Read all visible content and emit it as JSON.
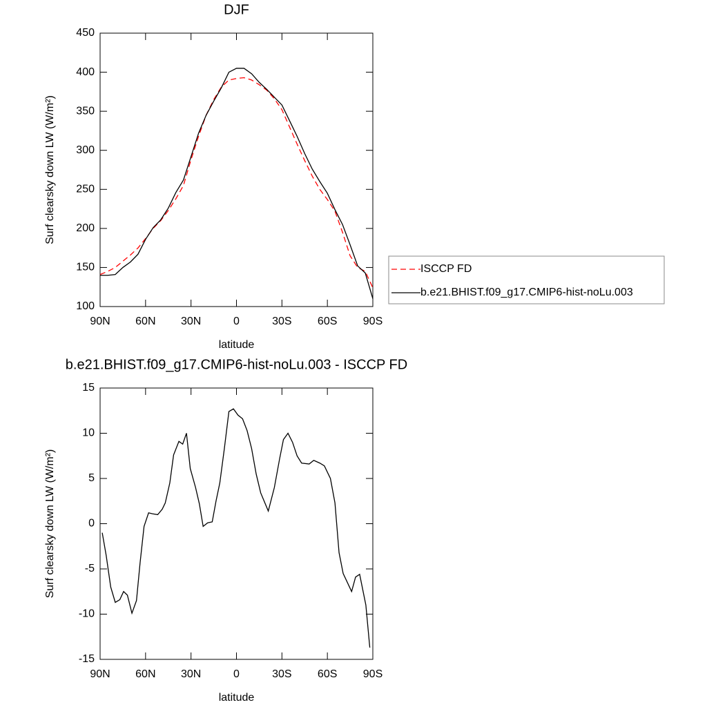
{
  "chart_data": [
    {
      "type": "line",
      "title": "DJF",
      "xlabel": "latitude",
      "ylabel": "Surf clearsky down LW (W/m²)",
      "xlim": [
        90,
        -90
      ],
      "xticks": [
        {
          "value": 90,
          "label": "90N"
        },
        {
          "value": 60,
          "label": "60N"
        },
        {
          "value": 30,
          "label": "30N"
        },
        0,
        {
          "value": -30,
          "label": "30S"
        },
        {
          "value": -60,
          "label": "60S"
        },
        {
          "value": -90,
          "label": "90S"
        }
      ],
      "ylim": [
        100,
        450
      ],
      "yticks": [
        100,
        150,
        200,
        250,
        300,
        350,
        400,
        450
      ],
      "legend": "right",
      "x": [
        90,
        85,
        80,
        75,
        70,
        65,
        60,
        55,
        50,
        45,
        40,
        35,
        30,
        25,
        20,
        15,
        10,
        5,
        0,
        -5,
        -10,
        -15,
        -20,
        -25,
        -30,
        -35,
        -40,
        -45,
        -50,
        -55,
        -60,
        -65,
        -70,
        -75,
        -80,
        -85,
        -90
      ],
      "series": [
        {
          "name": "ISCCP FD",
          "color": "#ff0000",
          "dashed": true,
          "values": [
            141,
            145,
            150,
            158,
            166,
            175,
            187,
            200,
            210,
            223,
            238,
            255,
            288,
            318,
            345,
            365,
            381,
            390,
            392,
            393,
            390,
            384,
            377,
            366,
            352,
            330,
            308,
            287,
            267,
            250,
            237,
            222,
            195,
            165,
            150,
            145,
            124
          ]
        },
        {
          "name": "b.e21.BHIST.f09_g17.CMIP6-hist-noLu.003",
          "color": "#000000",
          "dashed": false,
          "values": [
            140,
            140,
            141,
            150,
            157,
            167,
            186,
            201,
            211,
            226,
            246,
            262,
            292,
            322,
            345,
            363,
            380,
            400,
            405,
            405,
            398,
            387,
            378,
            368,
            358,
            338,
            318,
            296,
            276,
            260,
            245,
            224,
            205,
            179,
            152,
            143,
            110
          ]
        }
      ]
    },
    {
      "type": "line",
      "title": "b.e21.BHIST.f09_g17.CMIP6-hist-noLu.003 - ISCCP FD",
      "xlabel": "latitude",
      "ylabel": "Surf clearsky down LW (W/m²)",
      "xlim": [
        90,
        -90
      ],
      "xticks": [
        {
          "value": 90,
          "label": "90N"
        },
        {
          "value": 60,
          "label": "60N"
        },
        {
          "value": 30,
          "label": "30N"
        },
        0,
        {
          "value": -30,
          "label": "30S"
        },
        {
          "value": -60,
          "label": "60S"
        },
        {
          "value": -90,
          "label": "90S"
        }
      ],
      "ylim": [
        -15,
        15
      ],
      "yticks": [
        -15,
        -10,
        -5,
        0,
        5,
        10,
        15
      ],
      "color": "#000000",
      "x": [
        88.6,
        86,
        83,
        80,
        77,
        74.5,
        72,
        69,
        66,
        63.6,
        61,
        58,
        55.5,
        52,
        49,
        47,
        44,
        41.5,
        38,
        35.5,
        33,
        30.5,
        27,
        24.5,
        22,
        19,
        16,
        13.5,
        11,
        8,
        5,
        2,
        -1,
        -4,
        -7,
        -10,
        -13,
        -16,
        -21,
        -25,
        -28.5,
        -31,
        -34,
        -37,
        -40,
        -43,
        -48,
        -51,
        -55,
        -58,
        -62,
        -65,
        -67.7,
        -70.4,
        -76,
        -78.6,
        -81.3,
        -85.4,
        -88
      ],
      "values": [
        -1,
        -3.5,
        -7,
        -8.7,
        -8.4,
        -7.5,
        -7.9,
        -9.9,
        -8.5,
        -4.3,
        -0.3,
        1.2,
        1.1,
        1,
        1.6,
        2.3,
        4.5,
        7.6,
        9.1,
        8.8,
        10,
        6.1,
        4,
        2.2,
        -0.3,
        0.1,
        0.2,
        2.5,
        4.5,
        8.3,
        12.4,
        12.7,
        12,
        11.6,
        10.3,
        8.3,
        5.5,
        3.4,
        1.4,
        4,
        7.2,
        9.3,
        10,
        9,
        7.5,
        6.7,
        6.6,
        7,
        6.7,
        6.4,
        5,
        2.3,
        -3.2,
        -5.5,
        -7.5,
        -5.9,
        -5.6,
        -9,
        -13.7
      ]
    }
  ]
}
